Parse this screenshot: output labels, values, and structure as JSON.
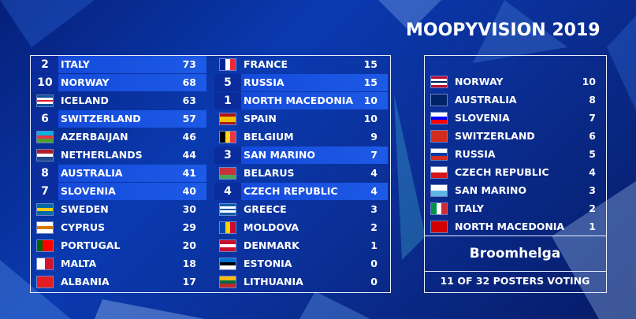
{
  "title": "MOOPYVISION 2019",
  "scoreboard": [
    {
      "points": 2,
      "country": "ITALY",
      "total": 73
    },
    {
      "points": 10,
      "country": "NORWAY",
      "total": 68
    },
    {
      "country": "ICELAND",
      "total": 63
    },
    {
      "points": 6,
      "country": "SWITZERLAND",
      "total": 57
    },
    {
      "country": "AZERBAIJAN",
      "total": 46
    },
    {
      "country": "NETHERLANDS",
      "total": 44
    },
    {
      "points": 8,
      "country": "AUSTRALIA",
      "total": 41
    },
    {
      "points": 7,
      "country": "SLOVENIA",
      "total": 40
    },
    {
      "country": "SWEDEN",
      "total": 30
    },
    {
      "country": "CYPRUS",
      "total": 29
    },
    {
      "country": "PORTUGAL",
      "total": 20
    },
    {
      "country": "MALTA",
      "total": 18
    },
    {
      "country": "ALBANIA",
      "total": 17
    },
    {
      "country": "FRANCE",
      "total": 15
    },
    {
      "points": 5,
      "country": "RUSSIA",
      "total": 15
    },
    {
      "points": 1,
      "country": "NORTH MACEDONIA",
      "total": 10
    },
    {
      "country": "SPAIN",
      "total": 10
    },
    {
      "country": "BELGIUM",
      "total": 9
    },
    {
      "points": 3,
      "country": "SAN MARINO",
      "total": 7
    },
    {
      "country": "BELARUS",
      "total": 4
    },
    {
      "points": 4,
      "country": "CZECH REPUBLIC",
      "total": 4
    },
    {
      "country": "GREECE",
      "total": 3
    },
    {
      "country": "MOLDOVA",
      "total": 2
    },
    {
      "country": "DENMARK",
      "total": 1
    },
    {
      "country": "ESTONIA",
      "total": 0
    },
    {
      "country": "LITHUANIA",
      "total": 0
    }
  ],
  "votes": [
    {
      "country": "NORWAY",
      "points": 10
    },
    {
      "country": "AUSTRALIA",
      "points": 8
    },
    {
      "country": "SLOVENIA",
      "points": 7
    },
    {
      "country": "SWITZERLAND",
      "points": 6
    },
    {
      "country": "RUSSIA",
      "points": 5
    },
    {
      "country": "CZECH REPUBLIC",
      "points": 4
    },
    {
      "country": "SAN MARINO",
      "points": 3
    },
    {
      "country": "ITALY",
      "points": 2
    },
    {
      "country": "NORTH MACEDONIA",
      "points": 1
    }
  ],
  "voter": "Broomhelga",
  "status": "11 OF 32 POSTERS VOTING"
}
